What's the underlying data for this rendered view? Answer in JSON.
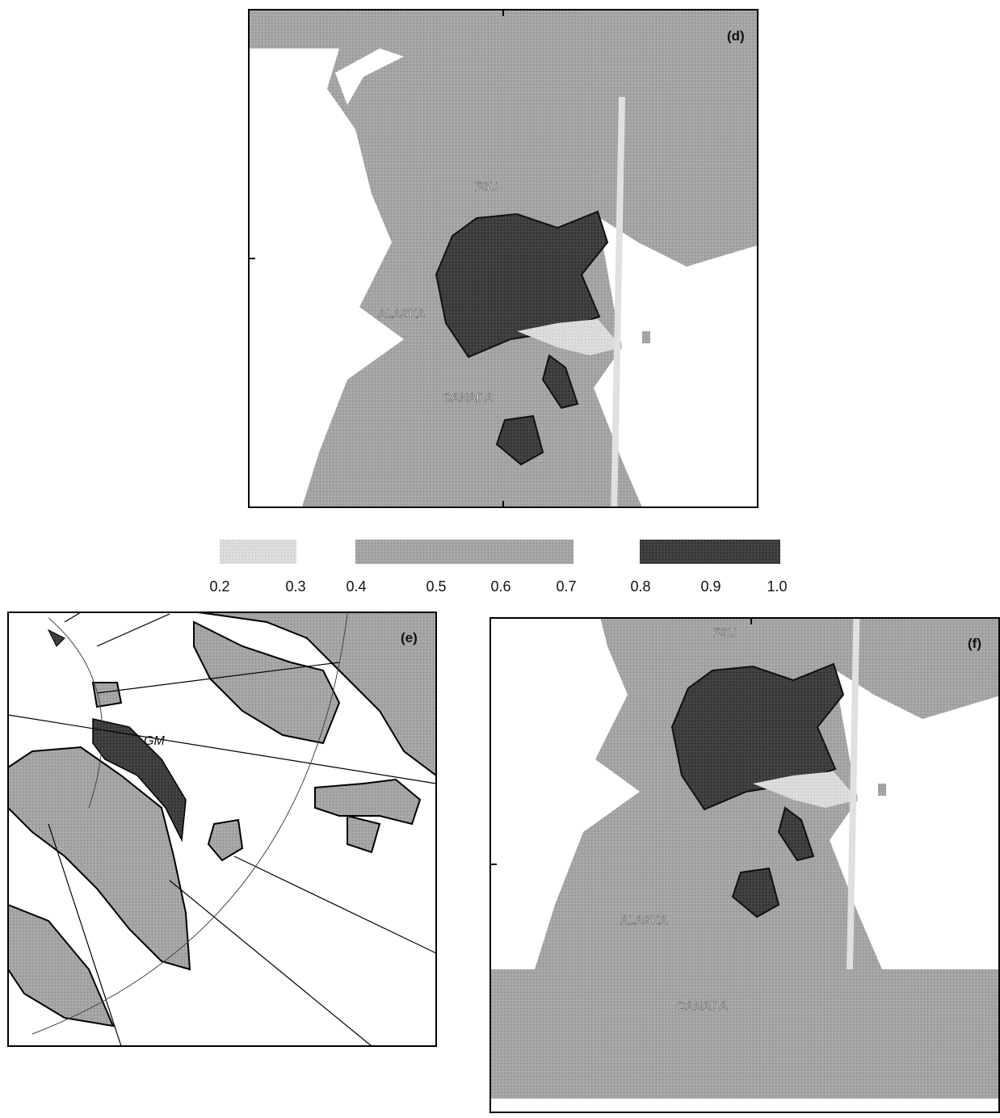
{
  "panels": [
    {
      "label": "(d)",
      "places": [
        "FSU",
        "ALASKA",
        "CANADA"
      ]
    },
    {
      "label": "(e)",
      "places": [
        "GM"
      ]
    },
    {
      "label": "(f)",
      "places": [
        "FSU",
        "ALASKA",
        "CANADA"
      ]
    }
  ],
  "colorbar": {
    "ticks": [
      0.2,
      0.3,
      0.4,
      0.5,
      0.6,
      0.7,
      0.8,
      0.9,
      {
        "value": 1,
        "label": "1.0"
      }
    ]
  }
}
